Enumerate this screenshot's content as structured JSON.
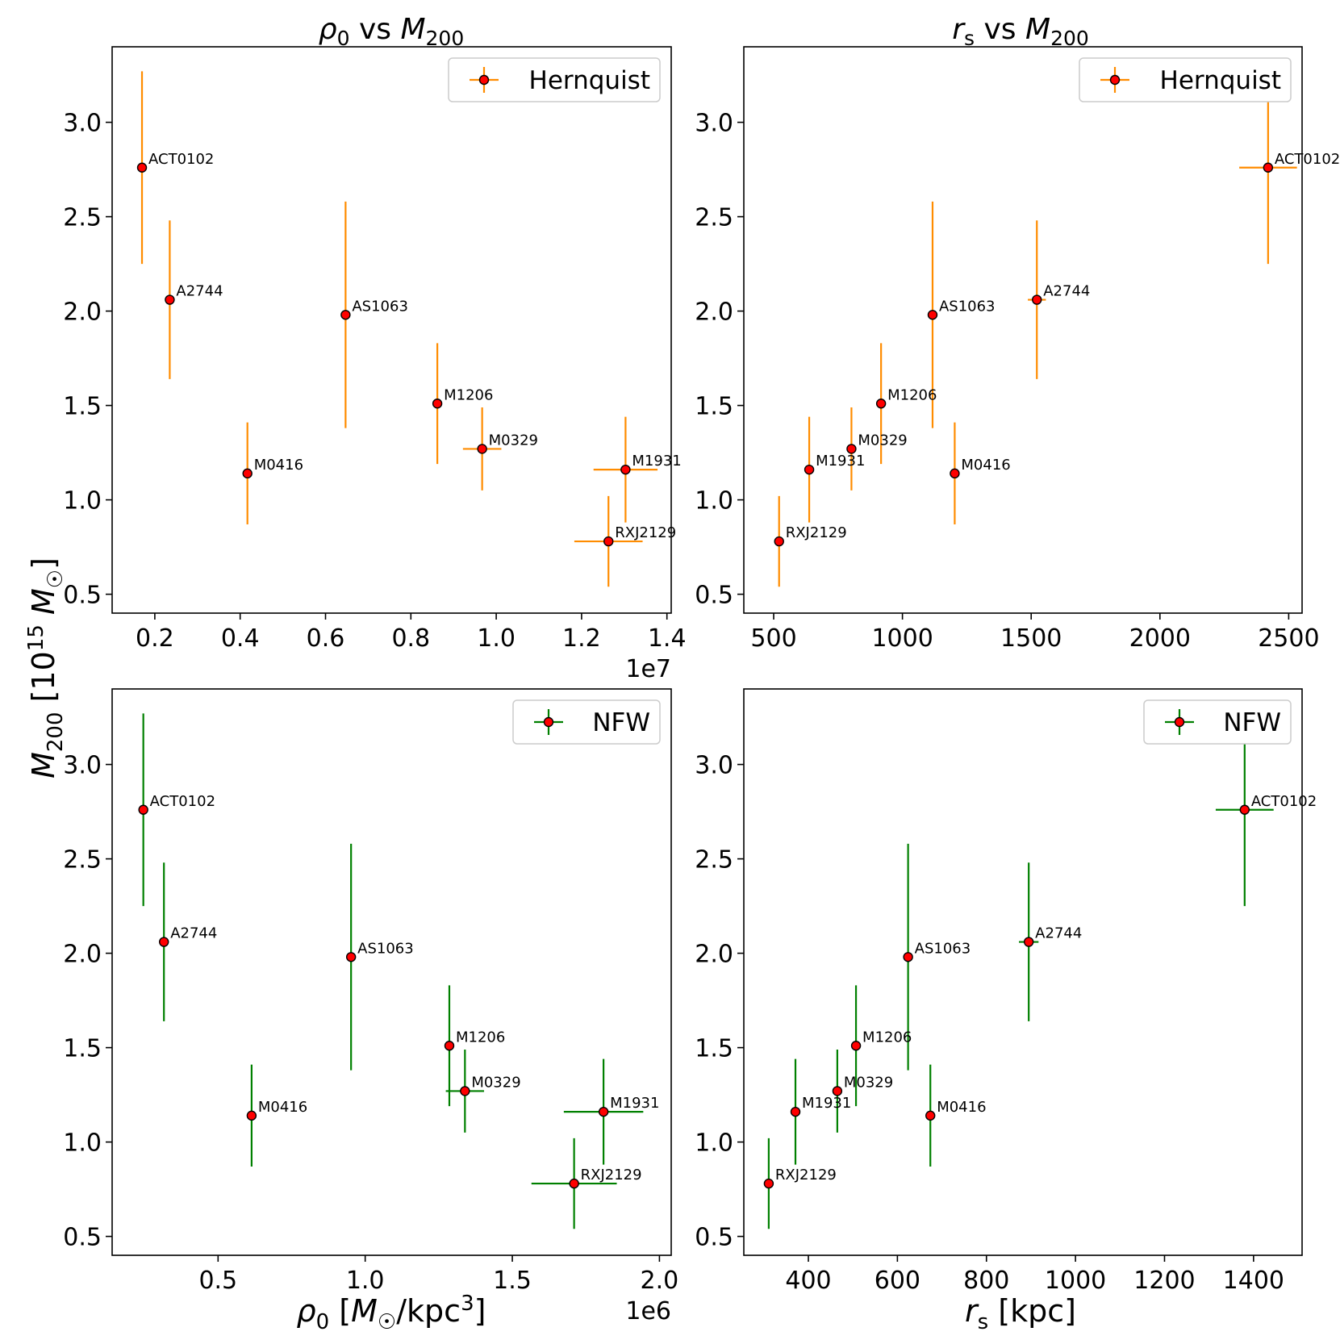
{
  "figure": {
    "shared_ylabel": "M200 [10^15 M☉]"
  },
  "chart_data": [
    {
      "id": "tl",
      "type": "scatter",
      "title": "ρ0 vs M200",
      "xlabel": "",
      "ylabel": "M200 [10^15 M☉]",
      "xlim": [
        0.1,
        1.41
      ],
      "ylim": [
        0.4,
        3.4
      ],
      "x_ticks": [
        0.2,
        0.4,
        0.6,
        0.8,
        1.0,
        1.2,
        1.4
      ],
      "x_tick_labels": [
        "0.2",
        "0.4",
        "0.6",
        "0.8",
        "1.0",
        "1.2",
        "1.4"
      ],
      "x_offset_label": "1e7",
      "y_ticks": [
        0.5,
        1.0,
        1.5,
        2.0,
        2.5,
        3.0
      ],
      "y_tick_labels": [
        "0.5",
        "1.0",
        "1.5",
        "2.0",
        "2.5",
        "3.0"
      ],
      "legend": {
        "label": "Hernquist",
        "position": "top-right"
      },
      "color": "#ff8c00",
      "series": [
        {
          "name": "Hernquist",
          "points": [
            {
              "label": "ACT0102",
              "x": 0.17,
              "y": 2.76,
              "xerr": 0,
              "yerr": 0.51
            },
            {
              "label": "A2744",
              "x": 0.235,
              "y": 2.06,
              "xerr": 0,
              "yerr": 0.42
            },
            {
              "label": "M0416",
              "x": 0.417,
              "y": 1.14,
              "xerr": 0,
              "yerr": 0.27
            },
            {
              "label": "AS1063",
              "x": 0.647,
              "y": 1.98,
              "xerr": 0,
              "yerr": 0.6
            },
            {
              "label": "M1206",
              "x": 0.862,
              "y": 1.51,
              "xerr": 0,
              "yerr": 0.32
            },
            {
              "label": "M0329",
              "x": 0.967,
              "y": 1.27,
              "xerr": 0.045,
              "yerr": 0.22
            },
            {
              "label": "M1931",
              "x": 1.303,
              "y": 1.16,
              "xerr": 0.075,
              "yerr": 0.28
            },
            {
              "label": "RXJ2129",
              "x": 1.263,
              "y": 0.78,
              "xerr": 0.08,
              "yerr": 0.24
            }
          ]
        }
      ]
    },
    {
      "id": "tr",
      "type": "scatter",
      "title": "rs vs M200",
      "xlabel": "",
      "ylabel": "",
      "xlim": [
        384,
        2552
      ],
      "ylim": [
        0.4,
        3.4
      ],
      "x_ticks": [
        500,
        1000,
        1500,
        2000,
        2500
      ],
      "x_tick_labels": [
        "500",
        "1000",
        "1500",
        "2000",
        "2500"
      ],
      "x_offset_label": "",
      "y_ticks": [
        0.5,
        1.0,
        1.5,
        2.0,
        2.5,
        3.0
      ],
      "y_tick_labels": [
        "0.5",
        "1.0",
        "1.5",
        "2.0",
        "2.5",
        "3.0"
      ],
      "legend": {
        "label": "Hernquist",
        "position": "top-right"
      },
      "color": "#ff8c00",
      "series": [
        {
          "name": "Hernquist",
          "points": [
            {
              "label": "ACT0102",
              "x": 2420,
              "y": 2.76,
              "xerr": 112,
              "yerr": 0.51
            },
            {
              "label": "A2744",
              "x": 1522,
              "y": 2.06,
              "xerr": 35,
              "yerr": 0.42
            },
            {
              "label": "AS1063",
              "x": 1117,
              "y": 1.98,
              "xerr": 0,
              "yerr": 0.6
            },
            {
              "label": "M1206",
              "x": 917,
              "y": 1.51,
              "xerr": 0,
              "yerr": 0.32
            },
            {
              "label": "M0329",
              "x": 802,
              "y": 1.27,
              "xerr": 10,
              "yerr": 0.22
            },
            {
              "label": "M1931",
              "x": 638,
              "y": 1.16,
              "xerr": 8,
              "yerr": 0.28
            },
            {
              "label": "M0416",
              "x": 1203,
              "y": 1.14,
              "xerr": 0,
              "yerr": 0.27
            },
            {
              "label": "RXJ2129",
              "x": 521,
              "y": 0.78,
              "xerr": 0,
              "yerr": 0.24
            }
          ]
        }
      ]
    },
    {
      "id": "bl",
      "type": "scatter",
      "title": "",
      "xlabel": "ρ0 [M☉/kpc³]",
      "ylabel": "M200 [10^15 M☉]",
      "xlim": [
        0.14,
        2.04
      ],
      "ylim": [
        0.4,
        3.4
      ],
      "x_ticks": [
        0.5,
        1.0,
        1.5,
        2.0
      ],
      "x_tick_labels": [
        "0.5",
        "1.0",
        "1.5",
        "2.0"
      ],
      "x_offset_label": "1e6",
      "y_ticks": [
        0.5,
        1.0,
        1.5,
        2.0,
        2.5,
        3.0
      ],
      "y_tick_labels": [
        "0.5",
        "1.0",
        "1.5",
        "2.0",
        "2.5",
        "3.0"
      ],
      "legend": {
        "label": "NFW",
        "position": "top-right"
      },
      "color": "#008000",
      "series": [
        {
          "name": "NFW",
          "points": [
            {
              "label": "ACT0102",
              "x": 0.246,
              "y": 2.76,
              "xerr": 0,
              "yerr": 0.51
            },
            {
              "label": "A2744",
              "x": 0.316,
              "y": 2.06,
              "xerr": 0,
              "yerr": 0.42
            },
            {
              "label": "M0416",
              "x": 0.614,
              "y": 1.14,
              "xerr": 0,
              "yerr": 0.27
            },
            {
              "label": "AS1063",
              "x": 0.952,
              "y": 1.98,
              "xerr": 0,
              "yerr": 0.6
            },
            {
              "label": "M1206",
              "x": 1.286,
              "y": 1.51,
              "xerr": 0,
              "yerr": 0.32
            },
            {
              "label": "M0329",
              "x": 1.339,
              "y": 1.27,
              "xerr": 0.065,
              "yerr": 0.22
            },
            {
              "label": "M1931",
              "x": 1.81,
              "y": 1.16,
              "xerr": 0.135,
              "yerr": 0.28
            },
            {
              "label": "RXJ2129",
              "x": 1.71,
              "y": 0.78,
              "xerr": 0.145,
              "yerr": 0.24
            }
          ]
        }
      ]
    },
    {
      "id": "br",
      "type": "scatter",
      "title": "",
      "xlabel": "rs [kpc]",
      "ylabel": "",
      "xlim": [
        255,
        1509
      ],
      "ylim": [
        0.4,
        3.4
      ],
      "x_ticks": [
        400,
        600,
        800,
        1000,
        1200,
        1400
      ],
      "x_tick_labels": [
        "400",
        "600",
        "800",
        "1000",
        "1200",
        "1400"
      ],
      "x_offset_label": "",
      "y_ticks": [
        0.5,
        1.0,
        1.5,
        2.0,
        2.5,
        3.0
      ],
      "y_tick_labels": [
        "0.5",
        "1.0",
        "1.5",
        "2.0",
        "2.5",
        "3.0"
      ],
      "legend": {
        "label": "NFW",
        "position": "top-right"
      },
      "color": "#008000",
      "series": [
        {
          "name": "NFW",
          "points": [
            {
              "label": "ACT0102",
              "x": 1380,
              "y": 2.76,
              "xerr": 65,
              "yerr": 0.51
            },
            {
              "label": "A2744",
              "x": 895,
              "y": 2.06,
              "xerr": 22,
              "yerr": 0.42
            },
            {
              "label": "AS1063",
              "x": 624,
              "y": 1.98,
              "xerr": 0,
              "yerr": 0.6
            },
            {
              "label": "M1206",
              "x": 507,
              "y": 1.51,
              "xerr": 0,
              "yerr": 0.32
            },
            {
              "label": "M0329",
              "x": 465,
              "y": 1.27,
              "xerr": 8,
              "yerr": 0.22
            },
            {
              "label": "M1931",
              "x": 371,
              "y": 1.16,
              "xerr": 9,
              "yerr": 0.28
            },
            {
              "label": "M0416",
              "x": 674,
              "y": 1.14,
              "xerr": 0,
              "yerr": 0.27
            },
            {
              "label": "RXJ2129",
              "x": 311,
              "y": 0.78,
              "xerr": 10,
              "yerr": 0.24
            }
          ]
        }
      ]
    }
  ]
}
